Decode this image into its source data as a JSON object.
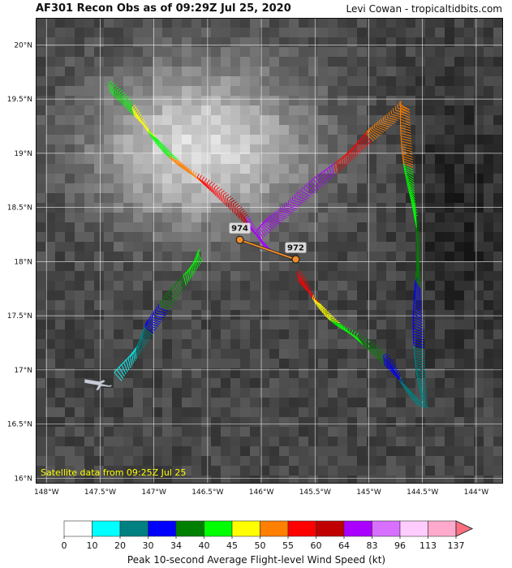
{
  "header": {
    "title": "AF301 Recon Obs as of 09:29Z Jul 25, 2020",
    "credit": "Levi Cowan - tropicaltidbits.com"
  },
  "map": {
    "lon_range": [
      -148.1,
      -143.75
    ],
    "lat_range": [
      15.95,
      20.25
    ],
    "lat_ticks": [
      "16°N",
      "16.5°N",
      "17°N",
      "17.5°N",
      "18°N",
      "18.5°N",
      "19°N",
      "19.5°N",
      "20°N"
    ],
    "lon_ticks": [
      "148°W",
      "147.5°W",
      "147°W",
      "146.5°W",
      "146°W",
      "145.5°W",
      "145°W",
      "144.5°W",
      "144°W"
    ],
    "satellite_note": "Satellite data from 09:25Z Jul 25",
    "pressure_obs": [
      {
        "label": "974",
        "lat": 18.2,
        "lon": -146.2
      },
      {
        "label": "972",
        "lat": 18.02,
        "lon": -145.68
      }
    ],
    "legs": [
      {
        "from": [
          -147.3,
          16.9
        ],
        "to": [
          -146.55,
          18.0
        ],
        "colors": [
          "#00ffff",
          "#008080",
          "#0000ff",
          "#008000",
          "#00ff00"
        ]
      },
      {
        "from": [
          -147.4,
          19.55
        ],
        "to": [
          -145.9,
          18.1
        ],
        "colors": [
          "#00ff00",
          "#ffff00",
          "#00ff00",
          "#ff7f00",
          "#ff0000",
          "#c00000",
          "#aa00ff"
        ]
      },
      {
        "from": [
          -145.65,
          17.8
        ],
        "to": [
          -144.45,
          16.65
        ],
        "colors": [
          "#ff0000",
          "#ffff00",
          "#00ff00",
          "#008000",
          "#0000ff",
          "#008080"
        ]
      },
      {
        "from": [
          -144.45,
          16.65
        ],
        "to": [
          -144.62,
          19.4
        ],
        "colors": [
          "#008080",
          "#0000ff",
          "#008000",
          "#00ff00",
          "#ff7f00"
        ]
      },
      {
        "from": [
          -144.62,
          19.4
        ],
        "to": [
          -146.0,
          18.2
        ],
        "colors": [
          "#ff7f00",
          "#ff0000",
          "#aa00ff",
          "#aa00ff"
        ]
      }
    ]
  },
  "colorbar": {
    "title": "Peak 10-second Average Flight-level Wind Speed (kt)",
    "bounds": [
      "0",
      "10",
      "20",
      "30",
      "34",
      "40",
      "45",
      "50",
      "55",
      "60",
      "64",
      "83",
      "96",
      "113",
      "137"
    ],
    "colors": [
      "#ffffff",
      "#00ffff",
      "#008080",
      "#0000ff",
      "#008000",
      "#00ff00",
      "#ffff00",
      "#ff7f00",
      "#ff0000",
      "#c00000",
      "#aa00ff",
      "#d770ff",
      "#ffccff",
      "#ffaacc"
    ],
    "extend_color": "#ff6f7f"
  }
}
